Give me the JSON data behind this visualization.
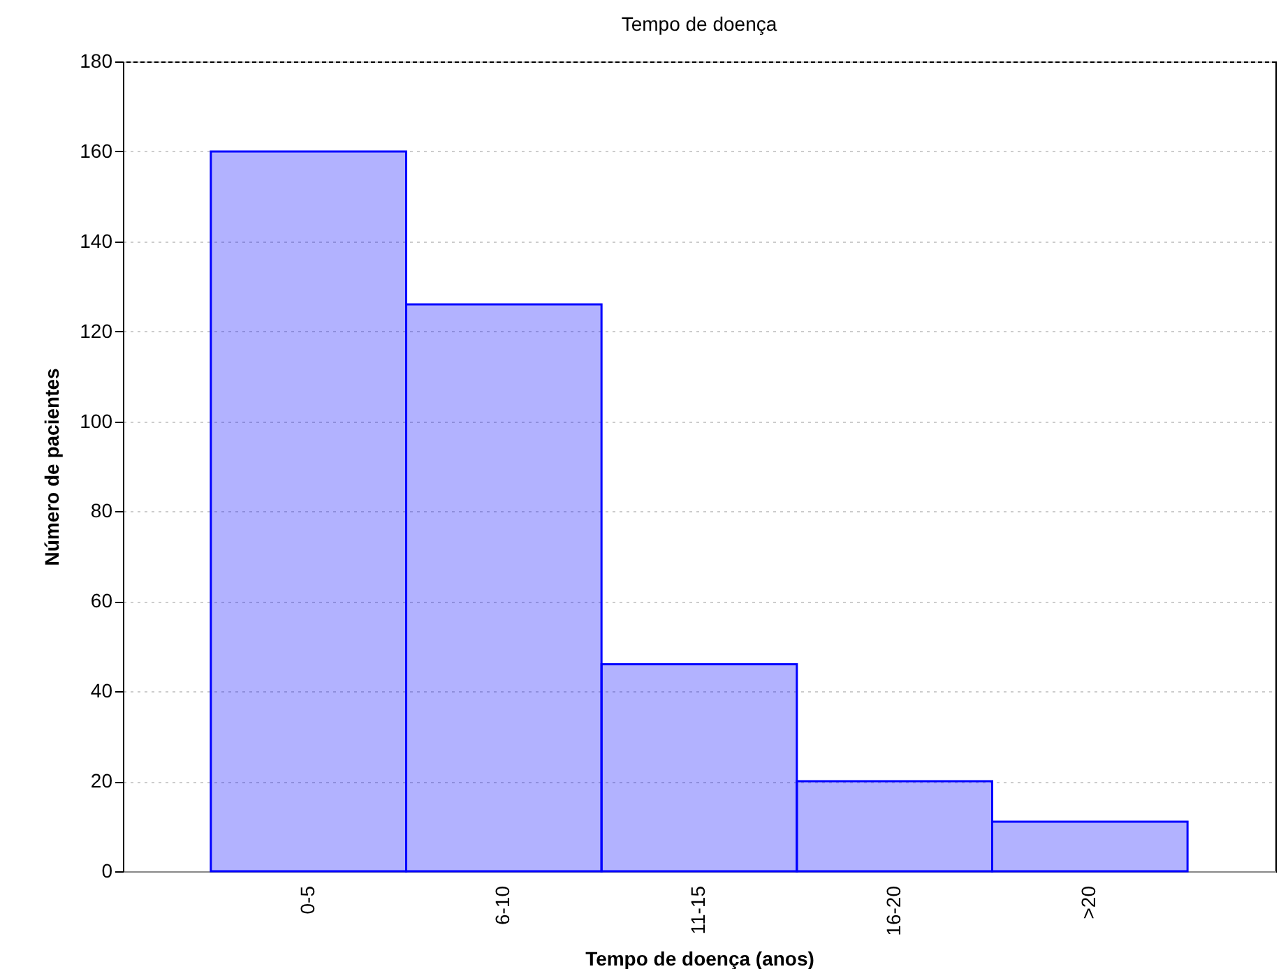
{
  "chart_data": {
    "type": "bar",
    "title": "Tempo de doença",
    "xlabel": "Tempo de doença (anos)",
    "ylabel": "Número de pacientes",
    "categories": [
      "0-5",
      "6-10",
      "11-15",
      "16-20",
      ">20"
    ],
    "values": [
      160,
      126,
      46,
      20,
      11
    ],
    "color": "#0000ff",
    "ylim": [
      0,
      180
    ],
    "yticks": [
      0,
      20,
      40,
      60,
      80,
      100,
      120,
      140,
      160,
      180
    ],
    "grid": "y"
  }
}
